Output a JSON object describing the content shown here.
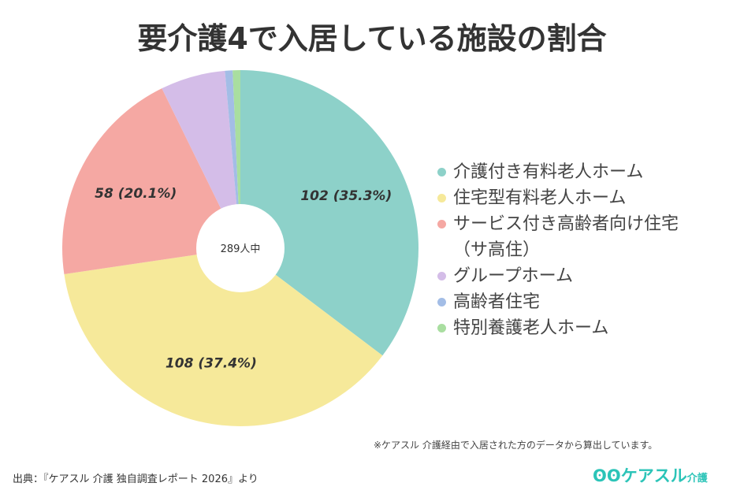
{
  "chart_data": {
    "type": "pie",
    "title": "要介護4で入居している施設の割合",
    "center_label": "289人中",
    "total": 289,
    "slices": [
      {
        "name": "介護付き有料老人ホーム",
        "value": 102,
        "label": "102 (35.3%)",
        "color": "#8dd1c9"
      },
      {
        "name": "住宅型有料老人ホーム",
        "value": 108,
        "label": "108 (37.4%)",
        "color": "#f6e99a"
      },
      {
        "name": "サービス付き高齢者向け住宅（サ高住）",
        "value": 58,
        "label": "58 (20.1%)",
        "color": "#f5a8a3"
      },
      {
        "name": "グループホーム",
        "value": 17,
        "label": "",
        "color": "#d4bde8"
      },
      {
        "name": "高齢者住宅",
        "value": 2,
        "label": "",
        "color": "#a3bde6"
      },
      {
        "name": "特別養護老人ホーム",
        "value": 2,
        "label": "",
        "color": "#a9dea0"
      }
    ],
    "legend_placement": "right"
  },
  "legend": [
    "介護付き有料老人ホーム",
    "住宅型有料老人ホーム",
    "サービス付き高齢者向け住宅\n（サ高住）",
    "グループホーム",
    "高齢者住宅",
    "特別養護老人ホーム"
  ],
  "note": "※ケアスル 介護経由で入居された方のデータから算出しています。",
  "source": "出典：『ケアスル 介護 独自調査レポート 2026』より",
  "logo": {
    "mark": "ʘʘ",
    "name": "ケアスル",
    "suffix": "介護"
  }
}
